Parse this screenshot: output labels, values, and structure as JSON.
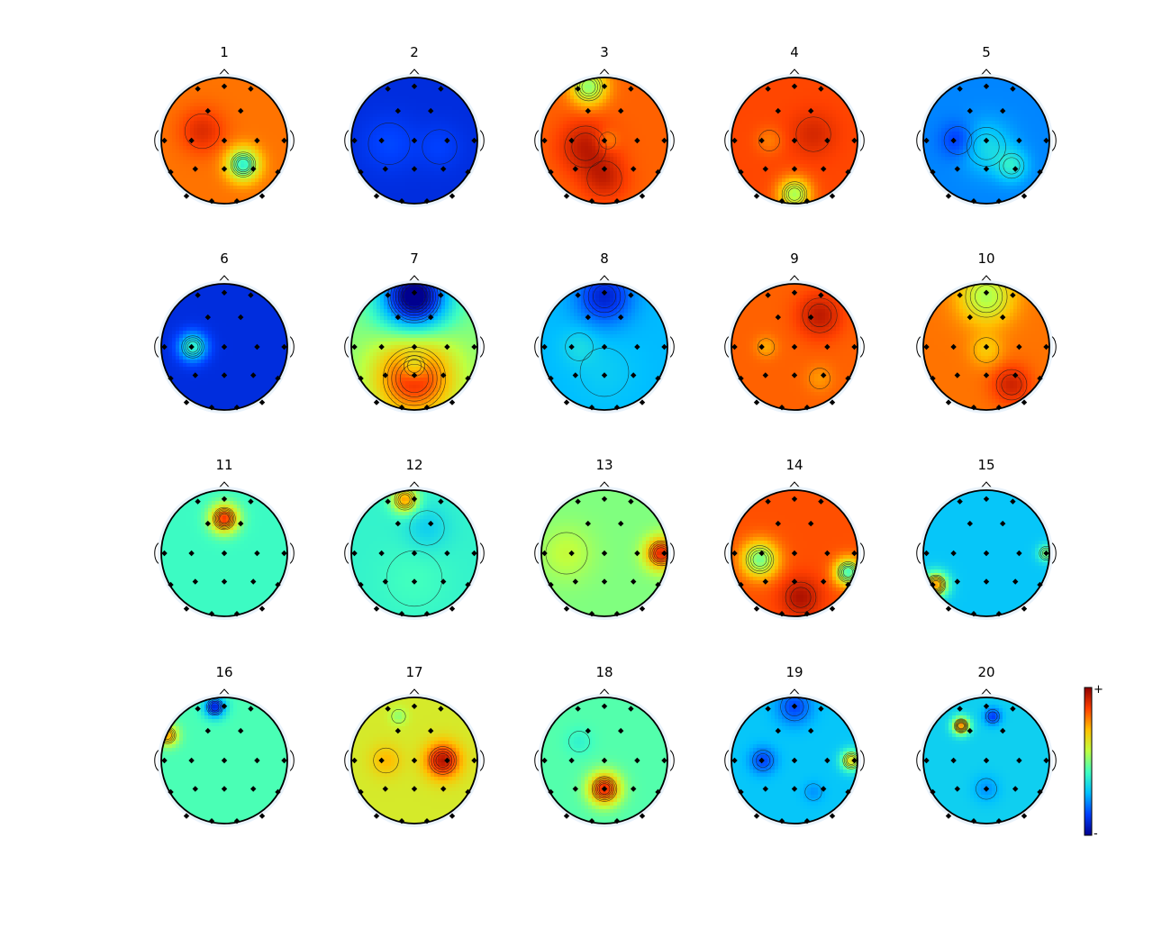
{
  "figure": {
    "colormap": [
      "#00008f",
      "#0040ff",
      "#00c0ff",
      "#40ffbf",
      "#bfff40",
      "#ffc000",
      "#ff4000",
      "#8f0000"
    ],
    "colorbar": {
      "plus_label": "+",
      "minus_label": "-"
    },
    "maps": [
      {
        "title": "1",
        "base": 0.8,
        "blobs": [
          [
            0.3,
            0.38,
            -0.4,
            0.18
          ],
          [
            -0.35,
            -0.15,
            0.1,
            0.25
          ]
        ]
      },
      {
        "title": "2",
        "base": 0.1,
        "blobs": [
          [
            -0.4,
            0.05,
            0.05,
            0.3
          ],
          [
            0.4,
            0.1,
            0.04,
            0.25
          ]
        ]
      },
      {
        "title": "3",
        "base": 0.82,
        "blobs": [
          [
            -0.25,
            -0.85,
            -0.3,
            0.2
          ],
          [
            -0.3,
            0.1,
            0.12,
            0.3
          ],
          [
            0.0,
            0.6,
            0.1,
            0.25
          ],
          [
            0.05,
            0.0,
            -0.08,
            0.12
          ]
        ]
      },
      {
        "title": "4",
        "base": 0.85,
        "blobs": [
          [
            0.0,
            0.85,
            -0.3,
            0.18
          ],
          [
            -0.4,
            0.0,
            -0.06,
            0.15
          ],
          [
            0.3,
            -0.1,
            0.06,
            0.25
          ]
        ]
      },
      {
        "title": "5",
        "base": 0.22,
        "blobs": [
          [
            0.0,
            0.1,
            0.12,
            0.28
          ],
          [
            0.4,
            0.4,
            0.15,
            0.18
          ],
          [
            -0.45,
            0.0,
            -0.1,
            0.2
          ]
        ]
      },
      {
        "title": "6",
        "base": 0.1,
        "blobs": [
          [
            -0.5,
            0.0,
            0.3,
            0.16
          ]
        ]
      },
      {
        "title": "7",
        "base": 0.5,
        "blobs": [
          [
            0.0,
            0.5,
            0.4,
            0.45
          ],
          [
            0.0,
            0.3,
            -0.18,
            0.15
          ],
          [
            0.0,
            -0.8,
            -0.55,
            0.38
          ]
        ]
      },
      {
        "title": "8",
        "base": 0.28,
        "blobs": [
          [
            0.0,
            -0.8,
            -0.2,
            0.3
          ],
          [
            -0.4,
            0.0,
            0.06,
            0.2
          ],
          [
            0.0,
            0.4,
            0.03,
            0.35
          ]
        ]
      },
      {
        "title": "9",
        "base": 0.82,
        "blobs": [
          [
            0.4,
            -0.5,
            0.12,
            0.25
          ],
          [
            -0.45,
            0.0,
            -0.08,
            0.12
          ],
          [
            0.4,
            0.5,
            -0.06,
            0.15
          ]
        ]
      },
      {
        "title": "10",
        "base": 0.8,
        "blobs": [
          [
            0.0,
            -0.8,
            -0.25,
            0.3
          ],
          [
            0.0,
            0.05,
            -0.1,
            0.18
          ],
          [
            0.4,
            0.6,
            0.12,
            0.22
          ]
        ]
      },
      {
        "title": "11",
        "base": 0.42,
        "blobs": [
          [
            0.0,
            -0.55,
            0.45,
            0.16
          ]
        ]
      },
      {
        "title": "12",
        "base": 0.4,
        "blobs": [
          [
            -0.15,
            -0.85,
            0.35,
            0.15
          ],
          [
            0.2,
            -0.4,
            -0.08,
            0.25
          ],
          [
            0.0,
            0.4,
            0.03,
            0.4
          ]
        ]
      },
      {
        "title": "13",
        "base": 0.5,
        "blobs": [
          [
            0.9,
            0.0,
            0.4,
            0.18
          ],
          [
            -0.6,
            0.0,
            0.08,
            0.3
          ]
        ]
      },
      {
        "title": "14",
        "base": 0.84,
        "blobs": [
          [
            -0.55,
            0.1,
            -0.35,
            0.2
          ],
          [
            0.85,
            0.3,
            -0.4,
            0.15
          ],
          [
            0.1,
            0.7,
            0.12,
            0.22
          ]
        ]
      },
      {
        "title": "15",
        "base": 0.3,
        "blobs": [
          [
            -0.8,
            0.5,
            0.45,
            0.14
          ],
          [
            0.95,
            0.0,
            0.2,
            0.1
          ]
        ]
      },
      {
        "title": "16",
        "base": 0.44,
        "blobs": [
          [
            -0.15,
            -0.85,
            -0.35,
            0.12
          ],
          [
            -0.9,
            -0.4,
            0.3,
            0.12
          ]
        ]
      },
      {
        "title": "17",
        "base": 0.62,
        "blobs": [
          [
            0.45,
            0.0,
            0.33,
            0.2
          ],
          [
            -0.45,
            0.0,
            0.1,
            0.18
          ],
          [
            -0.25,
            -0.7,
            -0.1,
            0.1
          ]
        ]
      },
      {
        "title": "18",
        "base": 0.45,
        "blobs": [
          [
            0.0,
            0.45,
            0.45,
            0.18
          ],
          [
            -0.4,
            -0.3,
            -0.05,
            0.15
          ]
        ]
      },
      {
        "title": "19",
        "base": 0.3,
        "blobs": [
          [
            -0.5,
            0.0,
            -0.15,
            0.15
          ],
          [
            0.9,
            0.0,
            0.35,
            0.12
          ],
          [
            0.0,
            -0.85,
            -0.15,
            0.2
          ],
          [
            0.3,
            0.5,
            -0.06,
            0.12
          ]
        ]
      },
      {
        "title": "20",
        "base": 0.32,
        "blobs": [
          [
            -0.4,
            -0.55,
            0.45,
            0.1
          ],
          [
            0.1,
            -0.7,
            -0.18,
            0.1
          ],
          [
            0.0,
            0.45,
            -0.08,
            0.15
          ]
        ]
      }
    ]
  }
}
